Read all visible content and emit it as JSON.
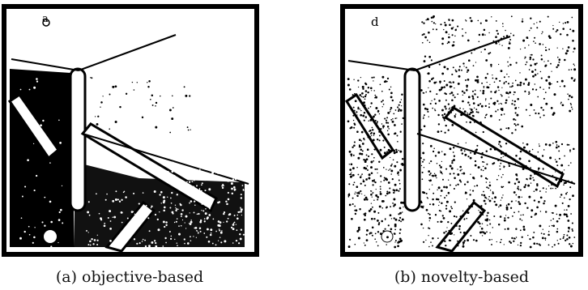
{
  "figure": {
    "panels": [
      {
        "id": "a",
        "corner_label": "a",
        "caption": "(a) objective-based"
      },
      {
        "id": "b",
        "corner_label": "d",
        "caption": "(b) novelty-based"
      }
    ],
    "colors": {
      "ink": "#000000",
      "paper": "#ffffff"
    }
  }
}
